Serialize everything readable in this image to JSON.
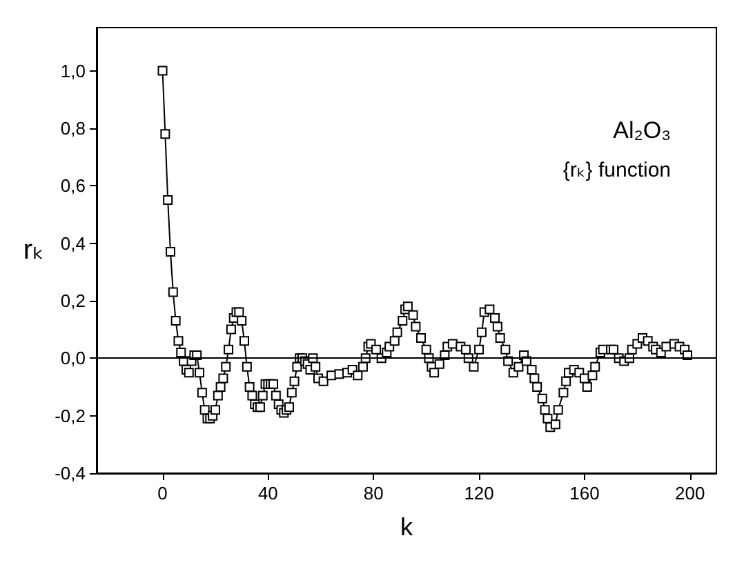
{
  "chart_data": {
    "type": "line",
    "xlabel": "k",
    "ylabel": "rₖ",
    "annotations": [
      "Al₂O₃",
      "{rₖ} function"
    ],
    "series": [
      {
        "color": "#000000",
        "marker": "square",
        "line_style": "solid",
        "x": [
          0,
          1,
          2,
          3,
          4,
          5,
          6,
          7,
          8,
          9,
          10,
          11,
          12,
          13,
          14,
          15,
          16,
          17,
          18,
          19,
          20,
          21,
          22,
          23,
          24,
          25,
          26,
          27,
          28,
          29,
          30,
          31,
          32,
          33,
          34,
          35,
          36,
          37,
          38,
          39,
          40,
          41,
          42,
          43,
          44,
          45,
          46,
          47,
          48,
          49,
          50,
          51,
          52,
          53,
          54,
          55,
          56,
          57,
          58,
          59,
          61,
          64,
          67,
          70,
          72,
          74,
          76,
          77,
          78,
          79,
          81,
          83,
          85,
          86,
          88,
          89,
          91,
          92,
          93,
          95,
          96,
          98,
          100,
          101,
          102,
          103,
          105,
          107,
          108,
          110,
          113,
          115,
          116,
          118,
          120,
          121,
          122,
          124,
          126,
          127,
          128,
          130,
          131,
          133,
          135,
          137,
          138,
          140,
          141,
          142,
          144,
          145,
          146,
          147,
          149,
          150,
          152,
          153,
          154,
          156,
          158,
          160,
          161,
          163,
          164,
          166,
          167,
          170,
          171,
          173,
          175,
          177,
          178,
          180,
          182,
          184,
          186,
          187,
          189,
          191,
          194,
          196,
          198,
          199
        ],
        "values": [
          1.0,
          0.78,
          0.55,
          0.37,
          0.23,
          0.13,
          0.06,
          0.02,
          -0.01,
          -0.04,
          -0.05,
          -0.01,
          0.01,
          0.01,
          -0.05,
          -0.12,
          -0.18,
          -0.21,
          -0.21,
          -0.2,
          -0.18,
          -0.13,
          -0.1,
          -0.07,
          -0.03,
          0.03,
          0.1,
          0.14,
          0.16,
          0.16,
          0.13,
          0.06,
          -0.03,
          -0.1,
          -0.13,
          -0.16,
          -0.17,
          -0.17,
          -0.13,
          -0.09,
          -0.09,
          -0.09,
          -0.09,
          -0.13,
          -0.16,
          -0.18,
          -0.19,
          -0.18,
          -0.17,
          -0.12,
          -0.08,
          -0.03,
          0.0,
          0.0,
          -0.01,
          -0.02,
          -0.04,
          0.0,
          -0.03,
          -0.07,
          -0.08,
          -0.06,
          -0.055,
          -0.05,
          -0.04,
          -0.06,
          -0.03,
          0.0,
          0.04,
          0.05,
          0.03,
          0.0,
          0.02,
          0.04,
          0.06,
          0.09,
          0.13,
          0.17,
          0.18,
          0.15,
          0.11,
          0.07,
          0.03,
          0.0,
          -0.03,
          -0.05,
          -0.02,
          0.01,
          0.04,
          0.05,
          0.04,
          0.03,
          0.0,
          -0.03,
          0.03,
          0.09,
          0.16,
          0.17,
          0.14,
          0.11,
          0.07,
          0.03,
          -0.01,
          -0.05,
          -0.03,
          0.01,
          -0.01,
          -0.04,
          -0.07,
          -0.1,
          -0.14,
          -0.18,
          -0.21,
          -0.24,
          -0.23,
          -0.18,
          -0.12,
          -0.08,
          -0.05,
          -0.04,
          -0.05,
          -0.07,
          -0.1,
          -0.06,
          -0.03,
          0.02,
          0.03,
          0.03,
          0.03,
          0.0,
          -0.01,
          0.0,
          0.03,
          0.05,
          0.07,
          0.06,
          0.04,
          0.03,
          0.02,
          0.04,
          0.05,
          0.04,
          0.03,
          0.01
        ]
      }
    ],
    "xlim": [
      -25,
      210
    ],
    "xticks": [
      0,
      40,
      80,
      120,
      160,
      200
    ],
    "ylim": [
      -0.4,
      1.15
    ],
    "yticks": [
      {
        "value": -0.4,
        "label": "-0,4"
      },
      {
        "value": -0.2,
        "label": "-0,2"
      },
      {
        "value": 0,
        "label": "0,0"
      },
      {
        "value": 0.2,
        "label": "0,2"
      },
      {
        "value": 0.4,
        "label": "0,4"
      },
      {
        "value": 0.6,
        "label": "0,6"
      },
      {
        "value": 0.8,
        "label": "0,8"
      },
      {
        "value": 1.0,
        "label": "1,0"
      }
    ],
    "ref_lines": [
      {
        "axis": "y",
        "value": 0,
        "color": "#000000",
        "line_style": "solid"
      }
    ],
    "grid": false
  }
}
